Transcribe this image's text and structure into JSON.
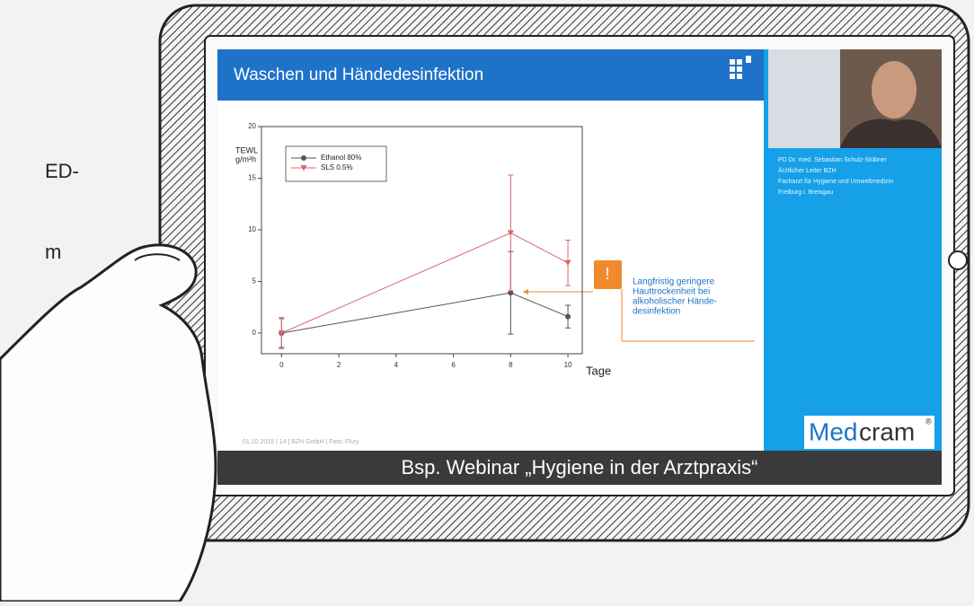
{
  "side_text": [
    "ED-",
    "m"
  ],
  "slide": {
    "title": "Waschen und Händedesinfektion",
    "annotation": {
      "icon": "!",
      "lines": [
        "Langfristig geringere",
        "Hauttrockenheit bei",
        "alkoholischer Hände-",
        "desinfektion"
      ]
    },
    "footer": "01.10.2015  |  14  |  BZH GmbH | Foto: Flury"
  },
  "chart_data": {
    "type": "line",
    "y_label": [
      "TEWL",
      "g/m²h"
    ],
    "x_label": "Tage",
    "x": [
      0,
      8,
      10
    ],
    "series": [
      {
        "name": "Ethanol 80%",
        "color": "#555555",
        "marker": "circle",
        "values": [
          0,
          3.9,
          1.6
        ],
        "errors": [
          1.4,
          4,
          1.1
        ]
      },
      {
        "name": "SLS 0.5%",
        "color": "#d9666b",
        "marker": "triangle",
        "values": [
          0,
          9.7,
          6.8
        ],
        "errors": [
          1.5,
          5.6,
          2.2
        ]
      }
    ],
    "xlim": [
      -0.7,
      10.5
    ],
    "ylim": [
      -2,
      20
    ],
    "xticks": [
      0,
      2,
      4,
      6,
      8,
      10
    ],
    "yticks": [
      0,
      5,
      10,
      15,
      20
    ]
  },
  "presenter": {
    "lines": [
      "PD Dr. med. Sebastian Schulz-Stübner",
      "Ärztlicher Leiter BZH",
      "Facharzt für Hygiene und Umweltmedizin",
      "Freiburg i. Breisgau"
    ]
  },
  "logo": {
    "part1": "Med",
    "part2": "cram",
    "mark": "®"
  },
  "caption": "Bsp. Webinar „Hygiene in der Arztpraxis“"
}
